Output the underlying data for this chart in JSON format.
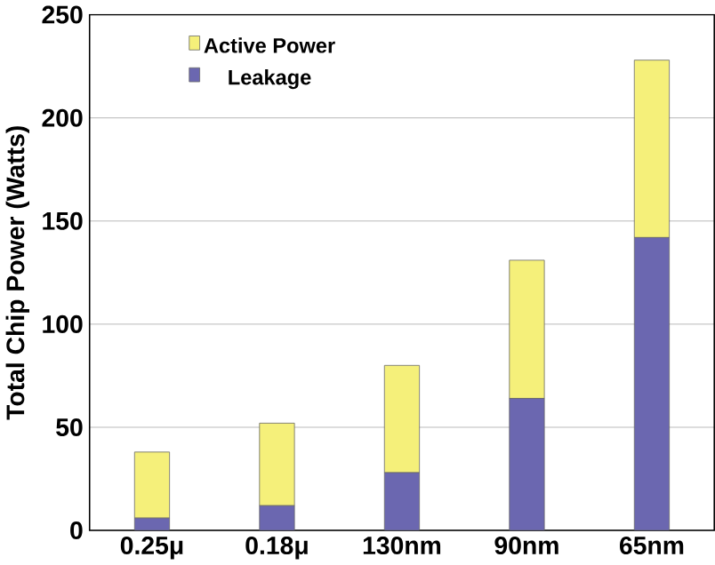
{
  "chart_data": {
    "type": "bar",
    "stacked": true,
    "ylabel": "Total Chip Power (Watts)",
    "categories": [
      "0.25μ",
      "0.18μ",
      "130nm",
      "90nm",
      "65nm"
    ],
    "series": [
      {
        "name": "Leakage",
        "color": "#6b67b0",
        "values": [
          6,
          12,
          28,
          64,
          142
        ]
      },
      {
        "name": "Active Power",
        "color": "#f5f07a",
        "values": [
          32,
          40,
          52,
          67,
          86
        ]
      }
    ],
    "ylim": [
      0,
      250
    ],
    "yticks": [
      0,
      50,
      100,
      150,
      200,
      250
    ],
    "grid": "y",
    "legend": "top left"
  }
}
